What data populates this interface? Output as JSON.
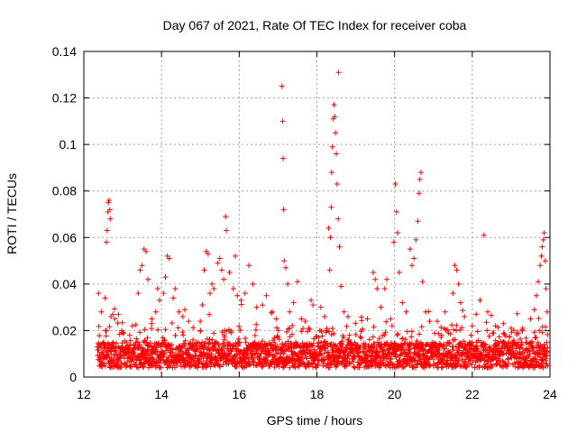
{
  "chart_data": {
    "type": "scatter",
    "title": "Day 067 of 2021, Rate Of TEC Index for receiver coba",
    "xlabel": "GPS time / hours",
    "ylabel": "ROTI / TECUs",
    "xlim": [
      12,
      24
    ],
    "ylim": [
      0,
      0.14
    ],
    "xticks": [
      12,
      14,
      16,
      18,
      20,
      22,
      24
    ],
    "yticks": [
      0,
      0.02,
      0.04,
      0.06,
      0.08,
      0.1,
      0.12,
      0.14
    ],
    "xtick_labels": [
      "12",
      "14",
      "16",
      "18",
      "20",
      "22",
      "24"
    ],
    "ytick_labels": [
      "0",
      "0.02",
      "0.04",
      "0.06",
      "0.08",
      "0.1",
      "0.12",
      "0.14"
    ],
    "grid": true,
    "marker": "+",
    "color": "#ff0000",
    "note": "Dense background cloud: ~2 obs/min between 12.35 h and 23.95 h with ROTI mostly 0.003-0.02 TECU/min; listed points are the visible excursions above the cloud.",
    "background_cloud": {
      "x_range": [
        12.35,
        23.95
      ],
      "typical_y_range": [
        0.003,
        0.02
      ]
    },
    "series": [
      {
        "name": "ROTI",
        "points": [
          [
            12.38,
            0.036
          ],
          [
            12.45,
            0.028
          ],
          [
            12.55,
            0.034
          ],
          [
            12.58,
            0.058
          ],
          [
            12.6,
            0.063
          ],
          [
            12.62,
            0.071
          ],
          [
            12.63,
            0.075
          ],
          [
            12.65,
            0.076
          ],
          [
            12.67,
            0.072
          ],
          [
            12.68,
            0.068
          ],
          [
            12.7,
            0.026
          ],
          [
            12.75,
            0.027
          ],
          [
            12.8,
            0.025
          ],
          [
            13.25,
            0.022
          ],
          [
            13.4,
            0.036
          ],
          [
            13.45,
            0.046
          ],
          [
            13.5,
            0.048
          ],
          [
            13.55,
            0.055
          ],
          [
            13.6,
            0.054
          ],
          [
            13.65,
            0.042
          ],
          [
            13.75,
            0.025
          ],
          [
            13.85,
            0.028
          ],
          [
            13.9,
            0.038
          ],
          [
            13.95,
            0.033
          ],
          [
            14.05,
            0.036
          ],
          [
            14.1,
            0.043
          ],
          [
            14.15,
            0.052
          ],
          [
            14.2,
            0.051
          ],
          [
            14.3,
            0.034
          ],
          [
            14.35,
            0.038
          ],
          [
            14.45,
            0.028
          ],
          [
            14.55,
            0.026
          ],
          [
            14.6,
            0.029
          ],
          [
            14.7,
            0.024
          ],
          [
            15.05,
            0.031
          ],
          [
            15.1,
            0.046
          ],
          [
            15.15,
            0.054
          ],
          [
            15.2,
            0.053
          ],
          [
            15.25,
            0.036
          ],
          [
            15.3,
            0.04
          ],
          [
            15.35,
            0.038
          ],
          [
            15.45,
            0.049
          ],
          [
            15.5,
            0.051
          ],
          [
            15.55,
            0.046
          ],
          [
            15.6,
            0.042
          ],
          [
            15.65,
            0.069
          ],
          [
            15.67,
            0.063
          ],
          [
            15.75,
            0.045
          ],
          [
            15.85,
            0.038
          ],
          [
            15.9,
            0.052
          ],
          [
            15.95,
            0.035
          ],
          [
            16.05,
            0.033
          ],
          [
            16.15,
            0.036
          ],
          [
            16.25,
            0.048
          ],
          [
            16.35,
            0.04
          ],
          [
            16.45,
            0.03
          ],
          [
            16.6,
            0.031
          ],
          [
            16.7,
            0.035
          ],
          [
            16.85,
            0.028
          ],
          [
            16.95,
            0.025
          ],
          [
            17.1,
            0.125
          ],
          [
            17.12,
            0.11
          ],
          [
            17.13,
            0.094
          ],
          [
            17.14,
            0.072
          ],
          [
            17.16,
            0.05
          ],
          [
            17.2,
            0.047
          ],
          [
            17.25,
            0.04
          ],
          [
            17.3,
            0.028
          ],
          [
            17.4,
            0.032
          ],
          [
            17.5,
            0.041
          ],
          [
            17.6,
            0.025
          ],
          [
            17.7,
            0.024
          ],
          [
            17.85,
            0.033
          ],
          [
            17.9,
            0.031
          ],
          [
            18.1,
            0.03
          ],
          [
            18.2,
            0.026
          ],
          [
            18.3,
            0.064
          ],
          [
            18.33,
            0.046
          ],
          [
            18.35,
            0.06
          ],
          [
            18.37,
            0.073
          ],
          [
            18.38,
            0.088
          ],
          [
            18.4,
            0.099
          ],
          [
            18.42,
            0.111
          ],
          [
            18.44,
            0.117
          ],
          [
            18.46,
            0.112
          ],
          [
            18.48,
            0.105
          ],
          [
            18.5,
            0.096
          ],
          [
            18.52,
            0.083
          ],
          [
            18.55,
            0.068
          ],
          [
            18.56,
            0.131
          ],
          [
            18.58,
            0.056
          ],
          [
            18.62,
            0.039
          ],
          [
            18.7,
            0.028
          ],
          [
            18.8,
            0.026
          ],
          [
            19.3,
            0.025
          ],
          [
            19.45,
            0.045
          ],
          [
            19.5,
            0.042
          ],
          [
            19.55,
            0.038
          ],
          [
            19.65,
            0.03
          ],
          [
            19.75,
            0.038
          ],
          [
            19.8,
            0.042
          ],
          [
            19.9,
            0.025
          ],
          [
            19.98,
            0.058
          ],
          [
            20.02,
            0.083
          ],
          [
            20.05,
            0.071
          ],
          [
            20.08,
            0.062
          ],
          [
            20.12,
            0.045
          ],
          [
            20.2,
            0.032
          ],
          [
            20.3,
            0.028
          ],
          [
            20.4,
            0.055
          ],
          [
            20.45,
            0.048
          ],
          [
            20.5,
            0.051
          ],
          [
            20.55,
            0.059
          ],
          [
            20.6,
            0.067
          ],
          [
            20.63,
            0.079
          ],
          [
            20.65,
            0.085
          ],
          [
            20.68,
            0.088
          ],
          [
            20.72,
            0.041
          ],
          [
            20.8,
            0.028
          ],
          [
            20.9,
            0.024
          ],
          [
            21.1,
            0.024
          ],
          [
            21.3,
            0.028
          ],
          [
            21.5,
            0.036
          ],
          [
            21.55,
            0.048
          ],
          [
            21.6,
            0.046
          ],
          [
            21.65,
            0.04
          ],
          [
            21.7,
            0.032
          ],
          [
            21.8,
            0.026
          ],
          [
            22.0,
            0.022
          ],
          [
            22.1,
            0.027
          ],
          [
            22.2,
            0.033
          ],
          [
            22.3,
            0.061
          ],
          [
            22.4,
            0.028
          ],
          [
            22.6,
            0.022
          ],
          [
            22.8,
            0.023
          ],
          [
            23.0,
            0.021
          ],
          [
            23.15,
            0.019
          ],
          [
            23.3,
            0.021
          ],
          [
            23.5,
            0.025
          ],
          [
            23.6,
            0.029
          ],
          [
            23.65,
            0.035
          ],
          [
            23.7,
            0.041
          ],
          [
            23.75,
            0.048
          ],
          [
            23.78,
            0.052
          ],
          [
            23.8,
            0.056
          ],
          [
            23.83,
            0.059
          ],
          [
            23.85,
            0.062
          ],
          [
            23.88,
            0.05
          ],
          [
            23.9,
            0.038
          ],
          [
            23.93,
            0.028
          ]
        ]
      }
    ]
  }
}
